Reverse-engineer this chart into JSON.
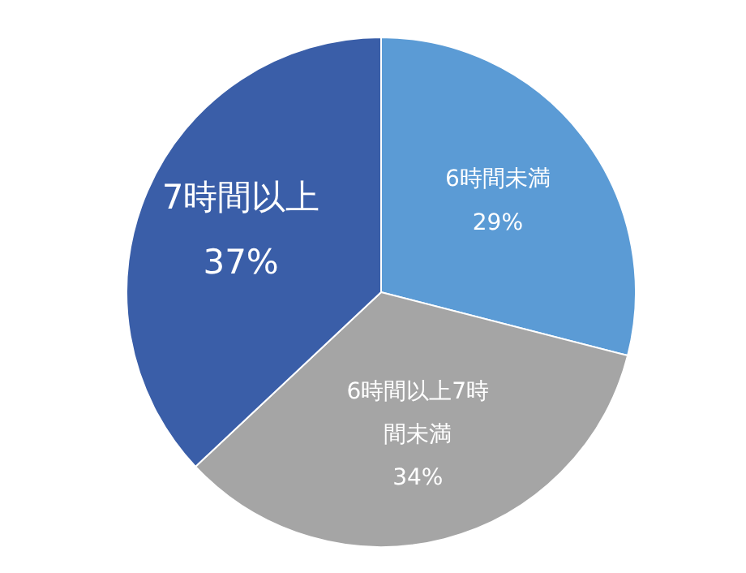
{
  "chart_data": {
    "type": "pie",
    "categories": [
      "6時間未満",
      "6時間以上7時間未満",
      "7時間以上"
    ],
    "values": [
      29,
      34,
      37
    ],
    "colors": [
      "#5b9bd5",
      "#a5a5a5",
      "#3a5ea8"
    ],
    "value_labels": [
      "29%",
      "34%",
      "37%"
    ]
  }
}
